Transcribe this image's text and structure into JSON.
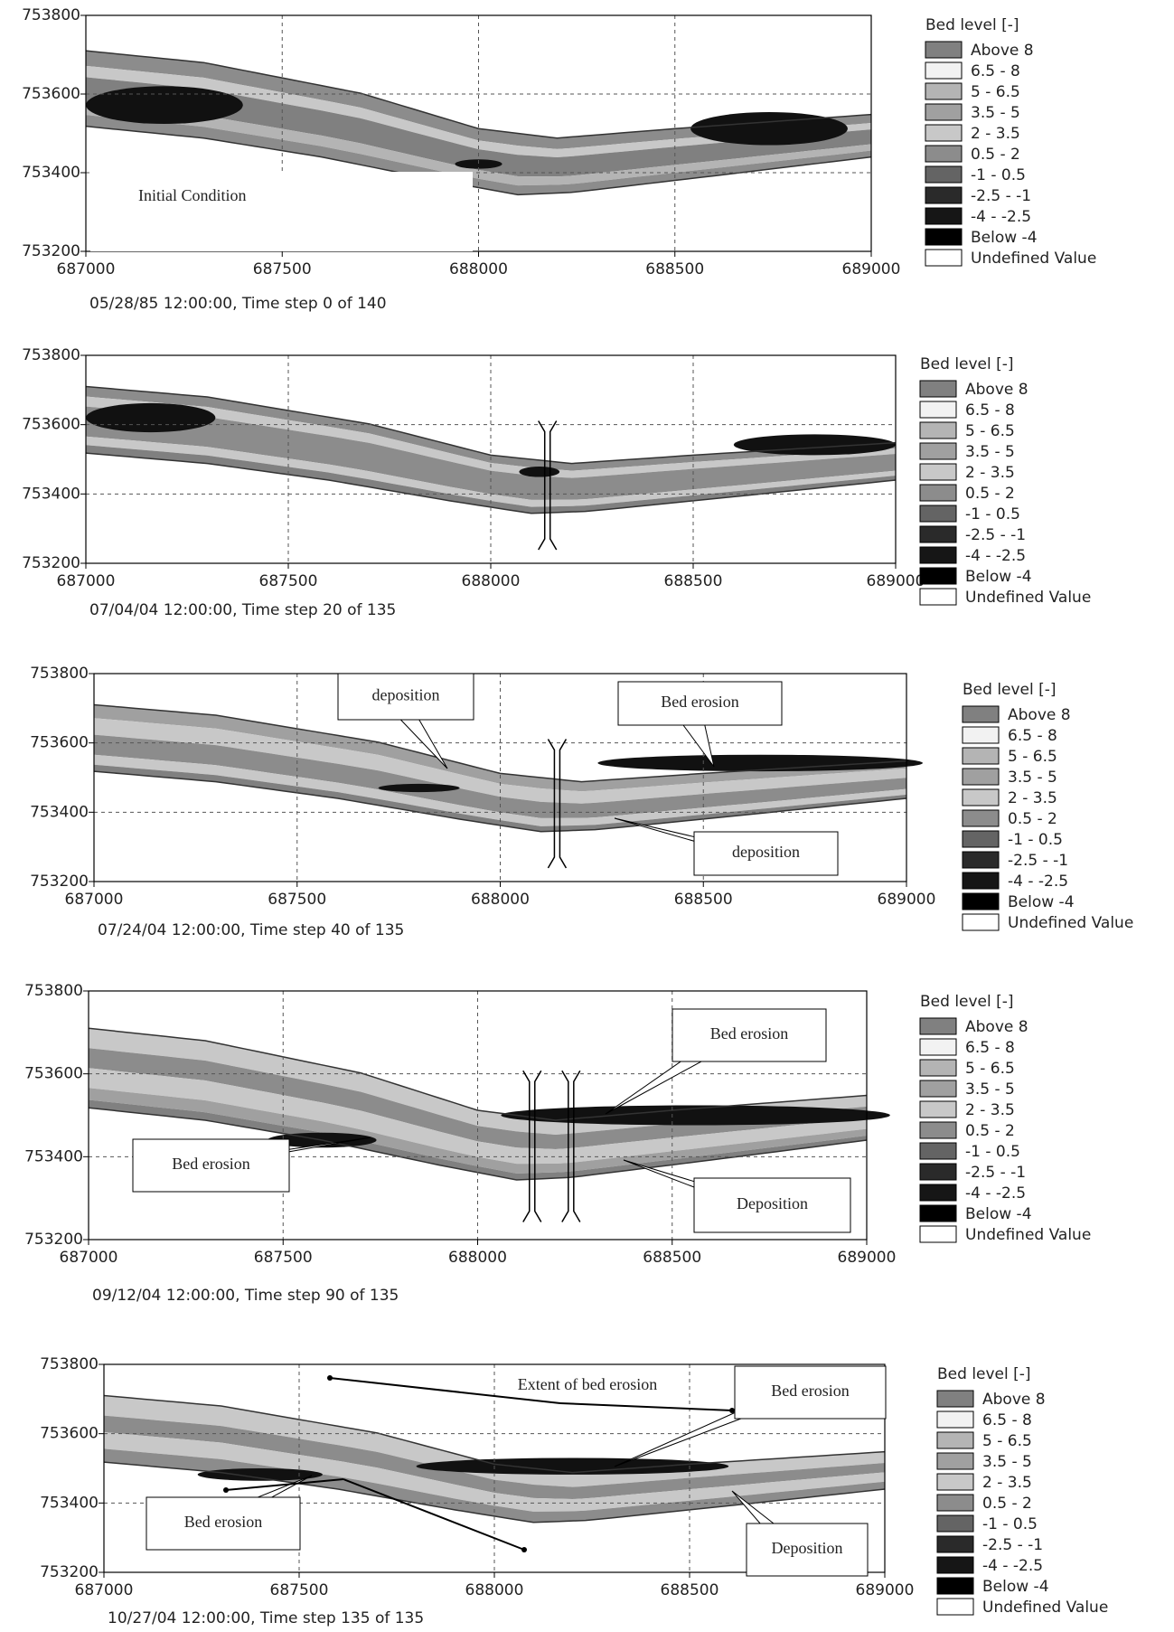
{
  "chart_data": [
    {
      "type": "contour",
      "xlim": [
        687000,
        689000
      ],
      "ylim": [
        753200,
        753800
      ],
      "xticks": [
        687000,
        687500,
        688000,
        688500,
        689000
      ],
      "yticks": [
        753200,
        753400,
        753600,
        753800
      ],
      "grid": true,
      "caption": "05/28/85 12:00:00, Time step 0 of 140",
      "annotations": [
        "Initial Condition"
      ],
      "legend": {
        "title": "Bed level [-]",
        "items": [
          {
            "label": "Above 8",
            "color": "#808080"
          },
          {
            "label": "6.5 - 8",
            "color": "#f2f2f2"
          },
          {
            "label": "5 - 6.5",
            "color": "#b4b4b4"
          },
          {
            "label": "3.5 - 5",
            "color": "#a0a0a0"
          },
          {
            "label": "2 - 3.5",
            "color": "#c8c8c8"
          },
          {
            "label": "0.5 - 2",
            "color": "#8c8c8c"
          },
          {
            "label": "-1 - 0.5",
            "color": "#646464"
          },
          {
            "label": "-2.5 - -1",
            "color": "#2a2a2a"
          },
          {
            "label": "-4 - -2.5",
            "color": "#161616"
          },
          {
            "label": "Below -4",
            "color": "#000000"
          },
          {
            "label": "Undefined Value",
            "color": "#ffffff"
          }
        ]
      }
    },
    {
      "type": "contour",
      "xlim": [
        687000,
        689000
      ],
      "ylim": [
        753200,
        753800
      ],
      "xticks": [
        687000,
        687500,
        688000,
        688500,
        689000
      ],
      "yticks": [
        753200,
        753400,
        753600,
        753800
      ],
      "grid": true,
      "caption": "07/04/04 12:00:00, Time step 20 of 135",
      "annotations": [],
      "legend": {
        "title": "Bed level [-]",
        "items": [
          {
            "label": "Above 8",
            "color": "#808080"
          },
          {
            "label": "6.5 - 8",
            "color": "#f2f2f2"
          },
          {
            "label": "5 - 6.5",
            "color": "#b4b4b4"
          },
          {
            "label": "3.5 - 5",
            "color": "#a0a0a0"
          },
          {
            "label": "2 - 3.5",
            "color": "#c8c8c8"
          },
          {
            "label": "0.5 - 2",
            "color": "#8c8c8c"
          },
          {
            "label": "-1 - 0.5",
            "color": "#646464"
          },
          {
            "label": "-2.5 - -1",
            "color": "#2a2a2a"
          },
          {
            "label": "-4 - -2.5",
            "color": "#161616"
          },
          {
            "label": "Below -4",
            "color": "#000000"
          },
          {
            "label": "Undefined Value",
            "color": "#ffffff"
          }
        ]
      }
    },
    {
      "type": "contour",
      "xlim": [
        687000,
        689000
      ],
      "ylim": [
        753200,
        753800
      ],
      "xticks": [
        687000,
        687500,
        688000,
        688500,
        689000
      ],
      "yticks": [
        753200,
        753400,
        753600,
        753800
      ],
      "grid": true,
      "caption": "07/24/04 12:00:00, Time step 40 of 135",
      "annotations": [
        "deposition",
        "Bed erosion",
        "deposition"
      ],
      "legend": {
        "title": "Bed level [-]",
        "items": [
          {
            "label": "Above 8",
            "color": "#808080"
          },
          {
            "label": "6.5 - 8",
            "color": "#f2f2f2"
          },
          {
            "label": "5 - 6.5",
            "color": "#b4b4b4"
          },
          {
            "label": "3.5 - 5",
            "color": "#a0a0a0"
          },
          {
            "label": "2 - 3.5",
            "color": "#c8c8c8"
          },
          {
            "label": "0.5 - 2",
            "color": "#8c8c8c"
          },
          {
            "label": "-1 - 0.5",
            "color": "#646464"
          },
          {
            "label": "-2.5 - -1",
            "color": "#2a2a2a"
          },
          {
            "label": "-4 - -2.5",
            "color": "#161616"
          },
          {
            "label": "Below -4",
            "color": "#000000"
          },
          {
            "label": "Undefined Value",
            "color": "#ffffff"
          }
        ]
      }
    },
    {
      "type": "contour",
      "xlim": [
        687000,
        689000
      ],
      "ylim": [
        753200,
        753800
      ],
      "xticks": [
        687000,
        687500,
        688000,
        688500,
        689000
      ],
      "yticks": [
        753200,
        753400,
        753600,
        753800
      ],
      "grid": true,
      "caption": "09/12/04 12:00:00, Time step 90 of 135",
      "annotations": [
        "Bed erosion",
        "Bed erosion",
        "Deposition"
      ],
      "legend": {
        "title": "Bed level [-]",
        "items": [
          {
            "label": "Above 8",
            "color": "#808080"
          },
          {
            "label": "6.5 - 8",
            "color": "#f2f2f2"
          },
          {
            "label": "5 - 6.5",
            "color": "#b4b4b4"
          },
          {
            "label": "3.5 - 5",
            "color": "#a0a0a0"
          },
          {
            "label": "2 - 3.5",
            "color": "#c8c8c8"
          },
          {
            "label": "0.5 - 2",
            "color": "#8c8c8c"
          },
          {
            "label": "-1 - 0.5",
            "color": "#646464"
          },
          {
            "label": "-2.5 - -1",
            "color": "#2a2a2a"
          },
          {
            "label": "-4 - -2.5",
            "color": "#161616"
          },
          {
            "label": "Below -4",
            "color": "#000000"
          },
          {
            "label": "Undefined Value",
            "color": "#ffffff"
          }
        ]
      }
    },
    {
      "type": "contour",
      "xlim": [
        687000,
        689000
      ],
      "ylim": [
        753200,
        753800
      ],
      "xticks": [
        687000,
        687500,
        688000,
        688500,
        689000
      ],
      "yticks": [
        753200,
        753400,
        753600,
        753800
      ],
      "grid": true,
      "caption": "10/27/04 12:00:00, Time step 135 of 135",
      "annotations": [
        "Extent of bed erosion",
        "Bed erosion",
        "Bed erosion",
        "Deposition"
      ],
      "legend": {
        "title": "Bed level [-]",
        "items": [
          {
            "label": "Above 8",
            "color": "#808080"
          },
          {
            "label": "6.5 - 8",
            "color": "#f2f2f2"
          },
          {
            "label": "5 - 6.5",
            "color": "#b4b4b4"
          },
          {
            "label": "3.5 - 5",
            "color": "#a0a0a0"
          },
          {
            "label": "2 - 3.5",
            "color": "#c8c8c8"
          },
          {
            "label": "0.5 - 2",
            "color": "#8c8c8c"
          },
          {
            "label": "-1 - 0.5",
            "color": "#646464"
          },
          {
            "label": "-2.5 - -1",
            "color": "#2a2a2a"
          },
          {
            "label": "-4 - -2.5",
            "color": "#161616"
          },
          {
            "label": "Below -4",
            "color": "#000000"
          },
          {
            "label": "Undefined Value",
            "color": "#ffffff"
          }
        ]
      }
    }
  ]
}
